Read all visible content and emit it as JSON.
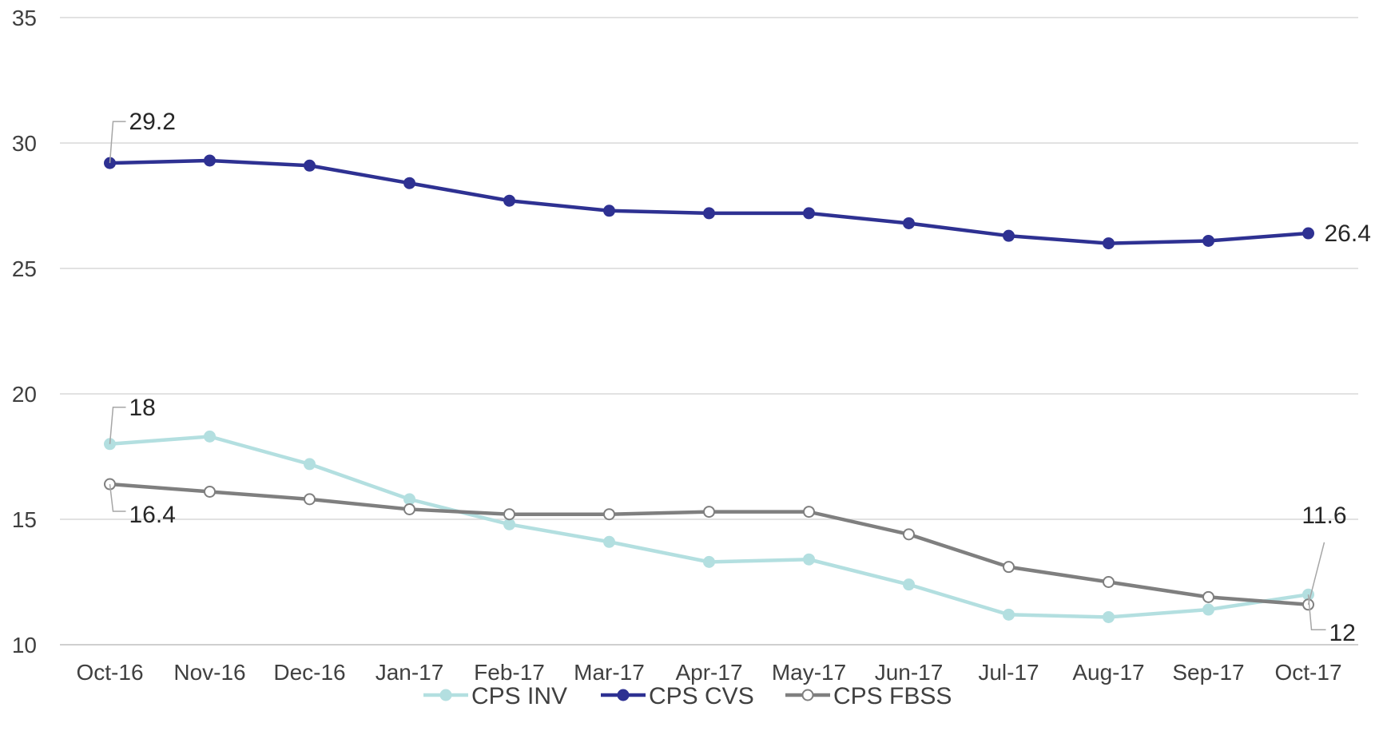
{
  "chart_data": {
    "type": "line",
    "title": "",
    "xlabel": "",
    "ylabel": "",
    "ylim": [
      10,
      35
    ],
    "yticks": [
      10,
      15,
      20,
      25,
      30,
      35
    ],
    "grid": "horizontal",
    "legend_position": "bottom",
    "categories": [
      "Oct-16",
      "Nov-16",
      "Dec-16",
      "Jan-17",
      "Feb-17",
      "Mar-17",
      "Apr-17",
      "May-17",
      "Jun-17",
      "Jul-17",
      "Aug-17",
      "Sep-17",
      "Oct-17"
    ],
    "series": [
      {
        "name": "CPS INV",
        "color": "#b3dfe0",
        "marker": "filled-circle",
        "values": [
          18.0,
          18.3,
          17.2,
          15.8,
          14.8,
          14.1,
          13.3,
          13.4,
          12.4,
          11.2,
          11.1,
          11.4,
          12.0
        ],
        "labels": {
          "first": "18",
          "last": "12"
        }
      },
      {
        "name": "CPS CVS",
        "color": "#2e3192",
        "marker": "filled-circle",
        "values": [
          29.2,
          29.3,
          29.1,
          28.4,
          27.7,
          27.3,
          27.2,
          27.2,
          26.8,
          26.3,
          26.0,
          26.1,
          26.4
        ],
        "labels": {
          "first": "29.2",
          "last": "26.4"
        }
      },
      {
        "name": "CPS FBSS",
        "color": "#7f7f7f",
        "marker": "hollow-circle",
        "values": [
          16.4,
          16.1,
          15.8,
          15.4,
          15.2,
          15.2,
          15.3,
          15.3,
          14.4,
          13.1,
          12.5,
          11.9,
          11.6
        ],
        "labels": {
          "first": "16.4",
          "last": "11.6"
        }
      }
    ],
    "axis_color": "#bfbfbf",
    "grid_color": "#d9d9d9"
  }
}
